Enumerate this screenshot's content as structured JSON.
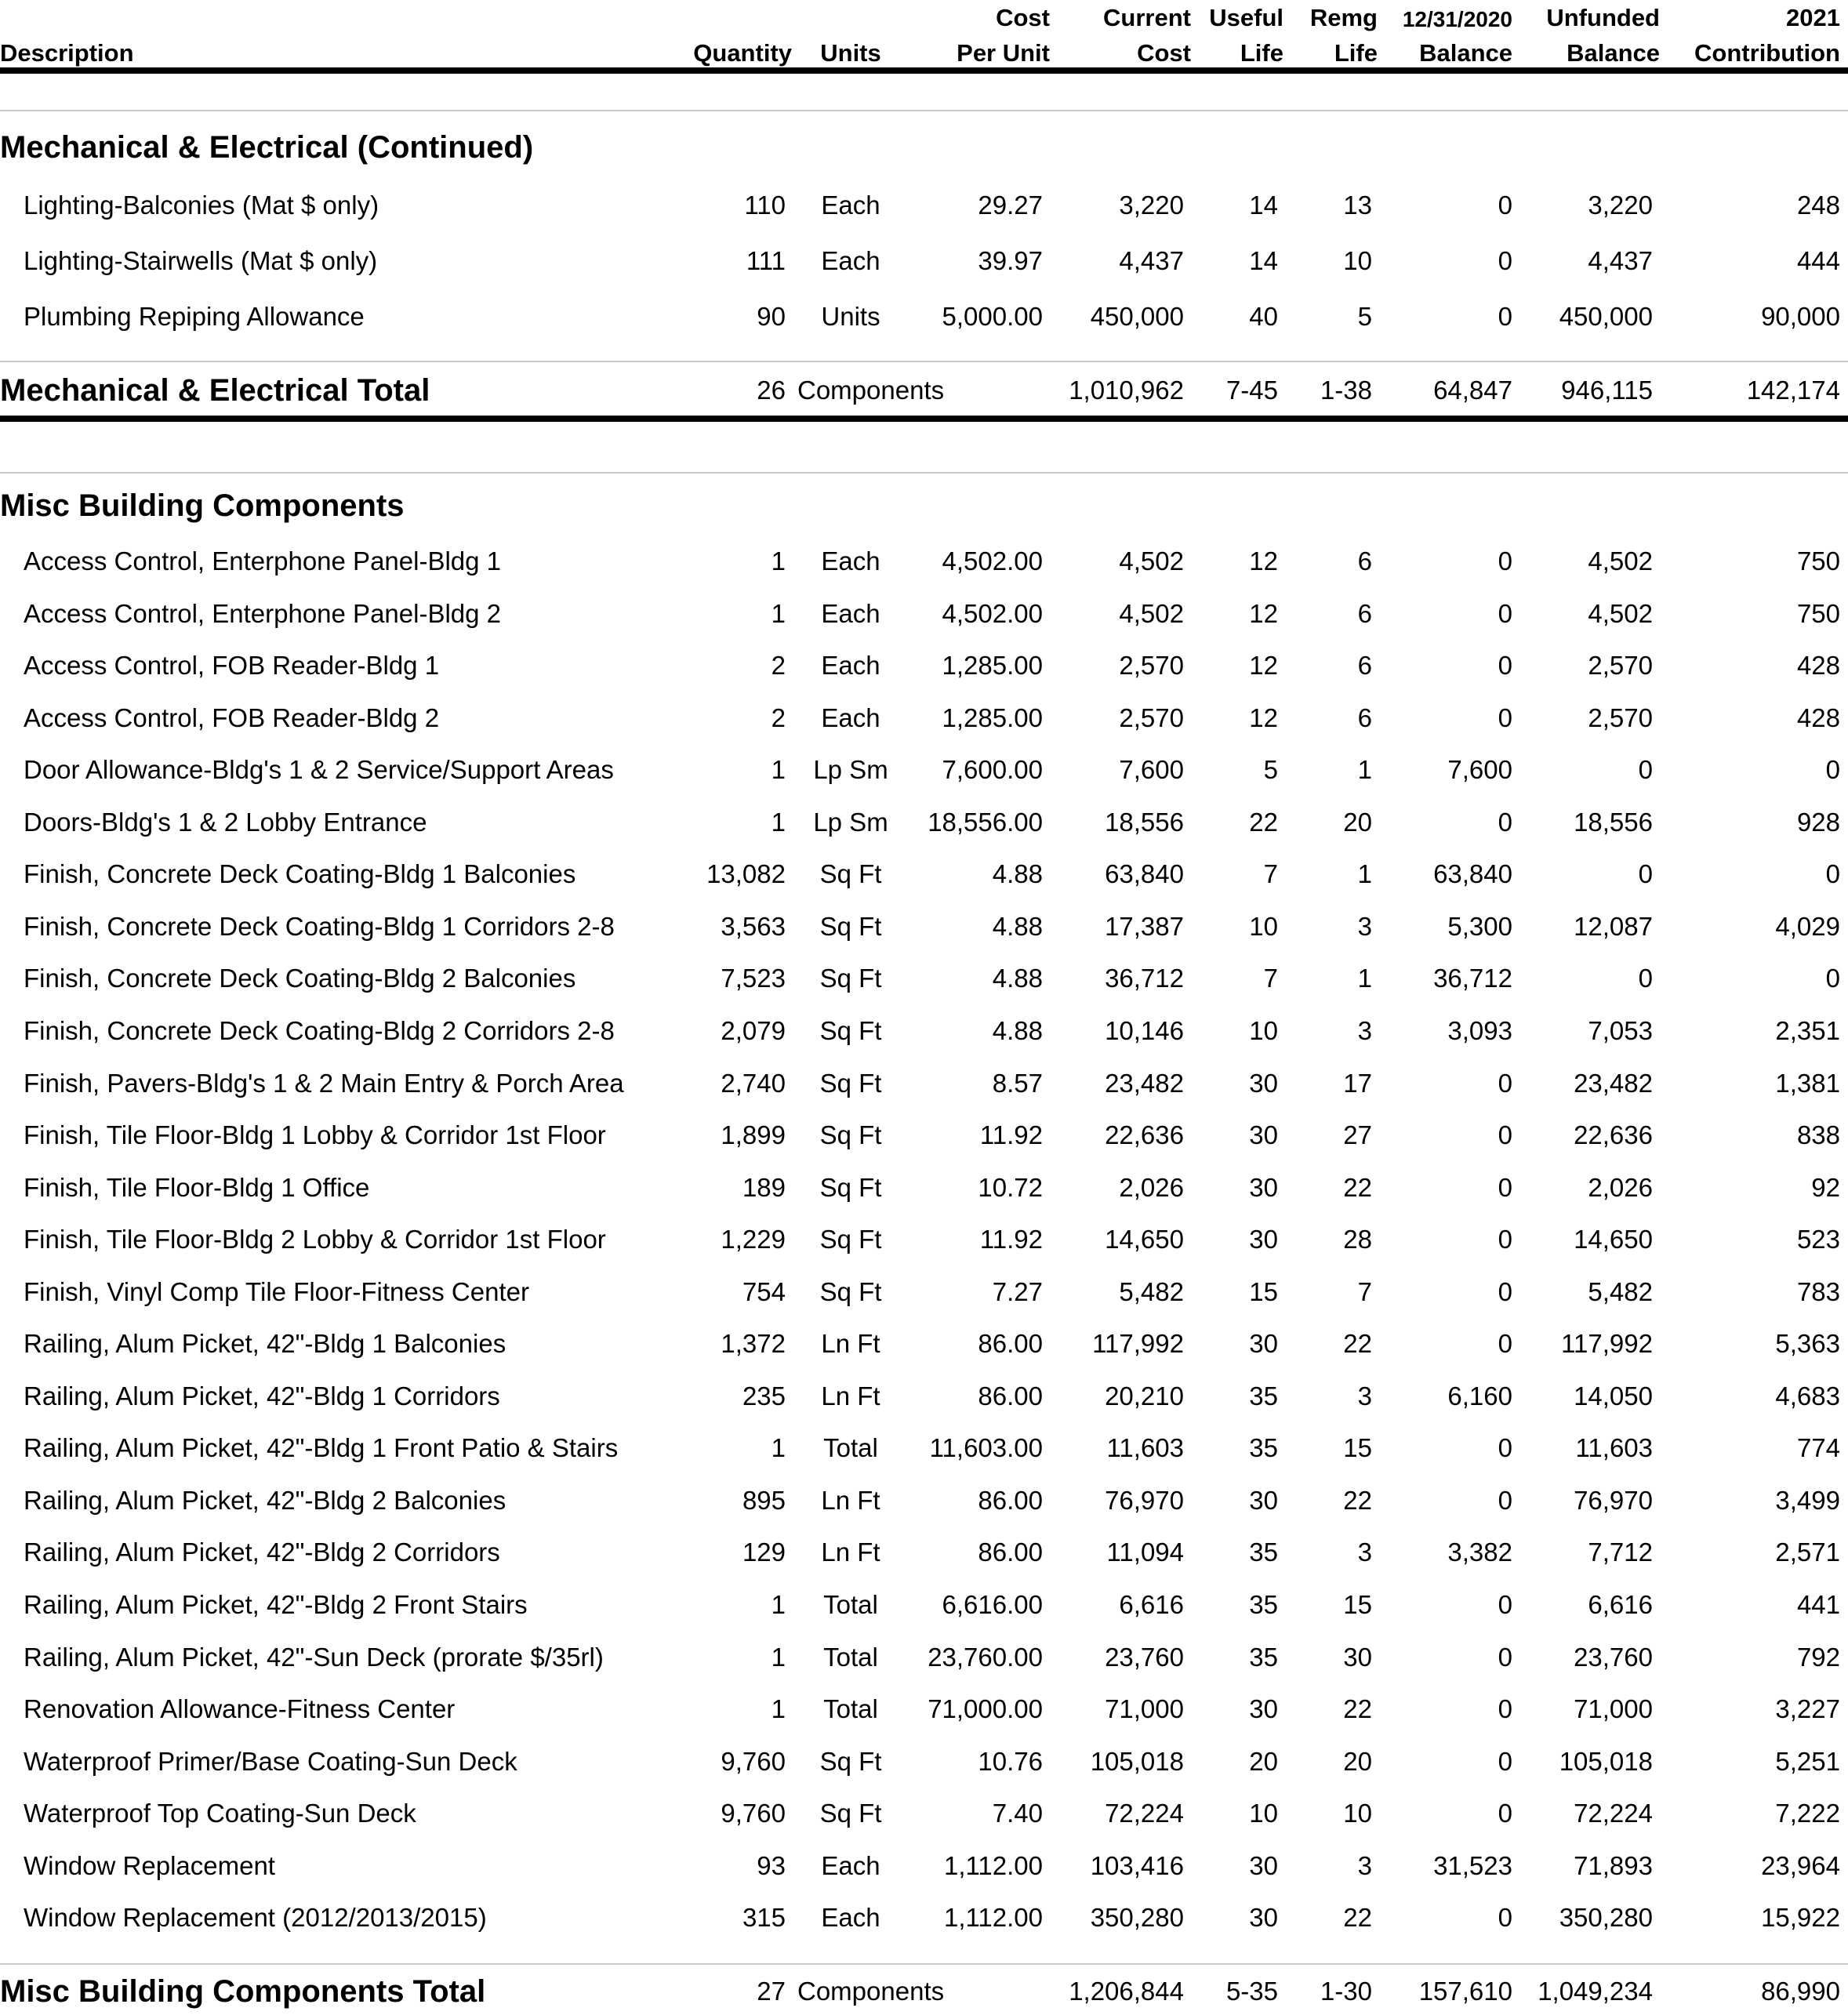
{
  "header": {
    "description": "Description",
    "quantity": "Quantity",
    "units": "Units",
    "cost_line1": "Cost",
    "cost_line2": "Per Unit",
    "current_line1": "Current",
    "current_line2": "Cost",
    "useful_line1": "Useful",
    "useful_line2": "Life",
    "remg_line1": "Remg",
    "remg_line2": "Life",
    "balance_line1": "12/31/2020",
    "balance_line2": "Balance",
    "unfunded_line1": "Unfunded",
    "unfunded_line2": "Balance",
    "contribution_line1": "2021",
    "contribution_line2": "Contribution"
  },
  "sections": [
    {
      "title": "Mechanical & Electrical (Continued)",
      "rows": [
        {
          "desc": "Lighting-Balconies (Mat $ only)",
          "qty": "110",
          "units": "Each",
          "cpu": "29.27",
          "cur": "3,220",
          "useful": "14",
          "remg": "13",
          "bal": "0",
          "unf": "3,220",
          "contrib": "248"
        },
        {
          "desc": "Lighting-Stairwells (Mat $ only)",
          "qty": "111",
          "units": "Each",
          "cpu": "39.97",
          "cur": "4,437",
          "useful": "14",
          "remg": "10",
          "bal": "0",
          "unf": "4,437",
          "contrib": "444"
        },
        {
          "desc": "Plumbing Repiping Allowance",
          "qty": "90",
          "units": "Units",
          "cpu": "5,000.00",
          "cur": "450,000",
          "useful": "40",
          "remg": "5",
          "bal": "0",
          "unf": "450,000",
          "contrib": "90,000"
        }
      ],
      "total": {
        "label": "Mechanical & Electrical Total",
        "qty": "26",
        "units": "Components",
        "cur": "1,010,962",
        "useful": "7-45",
        "remg": "1-38",
        "bal": "64,847",
        "unf": "946,115",
        "contrib": "142,174"
      }
    },
    {
      "title": "Misc Building Components",
      "rows": [
        {
          "desc": "Access Control, Enterphone Panel-Bldg 1",
          "qty": "1",
          "units": "Each",
          "cpu": "4,502.00",
          "cur": "4,502",
          "useful": "12",
          "remg": "6",
          "bal": "0",
          "unf": "4,502",
          "contrib": "750"
        },
        {
          "desc": "Access Control, Enterphone Panel-Bldg 2",
          "qty": "1",
          "units": "Each",
          "cpu": "4,502.00",
          "cur": "4,502",
          "useful": "12",
          "remg": "6",
          "bal": "0",
          "unf": "4,502",
          "contrib": "750"
        },
        {
          "desc": "Access Control, FOB Reader-Bldg 1",
          "qty": "2",
          "units": "Each",
          "cpu": "1,285.00",
          "cur": "2,570",
          "useful": "12",
          "remg": "6",
          "bal": "0",
          "unf": "2,570",
          "contrib": "428"
        },
        {
          "desc": "Access Control, FOB Reader-Bldg 2",
          "qty": "2",
          "units": "Each",
          "cpu": "1,285.00",
          "cur": "2,570",
          "useful": "12",
          "remg": "6",
          "bal": "0",
          "unf": "2,570",
          "contrib": "428"
        },
        {
          "desc": "Door Allowance-Bldg's 1 & 2 Service/Support Areas",
          "qty": "1",
          "units": "Lp Sm",
          "cpu": "7,600.00",
          "cur": "7,600",
          "useful": "5",
          "remg": "1",
          "bal": "7,600",
          "unf": "0",
          "contrib": "0"
        },
        {
          "desc": "Doors-Bldg's 1 & 2 Lobby Entrance",
          "qty": "1",
          "units": "Lp Sm",
          "cpu": "18,556.00",
          "cur": "18,556",
          "useful": "22",
          "remg": "20",
          "bal": "0",
          "unf": "18,556",
          "contrib": "928"
        },
        {
          "desc": "Finish, Concrete Deck Coating-Bldg 1 Balconies",
          "qty": "13,082",
          "units": "Sq Ft",
          "cpu": "4.88",
          "cur": "63,840",
          "useful": "7",
          "remg": "1",
          "bal": "63,840",
          "unf": "0",
          "contrib": "0"
        },
        {
          "desc": "Finish, Concrete Deck Coating-Bldg 1 Corridors 2-8",
          "qty": "3,563",
          "units": "Sq Ft",
          "cpu": "4.88",
          "cur": "17,387",
          "useful": "10",
          "remg": "3",
          "bal": "5,300",
          "unf": "12,087",
          "contrib": "4,029"
        },
        {
          "desc": "Finish, Concrete Deck Coating-Bldg 2 Balconies",
          "qty": "7,523",
          "units": "Sq Ft",
          "cpu": "4.88",
          "cur": "36,712",
          "useful": "7",
          "remg": "1",
          "bal": "36,712",
          "unf": "0",
          "contrib": "0"
        },
        {
          "desc": "Finish, Concrete Deck Coating-Bldg 2 Corridors 2-8",
          "qty": "2,079",
          "units": "Sq Ft",
          "cpu": "4.88",
          "cur": "10,146",
          "useful": "10",
          "remg": "3",
          "bal": "3,093",
          "unf": "7,053",
          "contrib": "2,351"
        },
        {
          "desc": "Finish, Pavers-Bldg's 1 & 2 Main Entry & Porch Area",
          "qty": "2,740",
          "units": "Sq Ft",
          "cpu": "8.57",
          "cur": "23,482",
          "useful": "30",
          "remg": "17",
          "bal": "0",
          "unf": "23,482",
          "contrib": "1,381"
        },
        {
          "desc": "Finish, Tile Floor-Bldg 1 Lobby & Corridor 1st Floor",
          "qty": "1,899",
          "units": "Sq Ft",
          "cpu": "11.92",
          "cur": "22,636",
          "useful": "30",
          "remg": "27",
          "bal": "0",
          "unf": "22,636",
          "contrib": "838"
        },
        {
          "desc": "Finish, Tile Floor-Bldg 1 Office",
          "qty": "189",
          "units": "Sq Ft",
          "cpu": "10.72",
          "cur": "2,026",
          "useful": "30",
          "remg": "22",
          "bal": "0",
          "unf": "2,026",
          "contrib": "92"
        },
        {
          "desc": "Finish, Tile Floor-Bldg 2 Lobby & Corridor 1st Floor",
          "qty": "1,229",
          "units": "Sq Ft",
          "cpu": "11.92",
          "cur": "14,650",
          "useful": "30",
          "remg": "28",
          "bal": "0",
          "unf": "14,650",
          "contrib": "523"
        },
        {
          "desc": "Finish, Vinyl Comp Tile Floor-Fitness Center",
          "qty": "754",
          "units": "Sq Ft",
          "cpu": "7.27",
          "cur": "5,482",
          "useful": "15",
          "remg": "7",
          "bal": "0",
          "unf": "5,482",
          "contrib": "783"
        },
        {
          "desc": "Railing, Alum Picket, 42\"-Bldg 1 Balconies",
          "qty": "1,372",
          "units": "Ln Ft",
          "cpu": "86.00",
          "cur": "117,992",
          "useful": "30",
          "remg": "22",
          "bal": "0",
          "unf": "117,992",
          "contrib": "5,363"
        },
        {
          "desc": "Railing, Alum Picket, 42\"-Bldg 1 Corridors",
          "qty": "235",
          "units": "Ln Ft",
          "cpu": "86.00",
          "cur": "20,210",
          "useful": "35",
          "remg": "3",
          "bal": "6,160",
          "unf": "14,050",
          "contrib": "4,683"
        },
        {
          "desc": "Railing, Alum Picket, 42\"-Bldg 1 Front Patio & Stairs",
          "qty": "1",
          "units": "Total",
          "cpu": "11,603.00",
          "cur": "11,603",
          "useful": "35",
          "remg": "15",
          "bal": "0",
          "unf": "11,603",
          "contrib": "774"
        },
        {
          "desc": "Railing, Alum Picket, 42\"-Bldg 2 Balconies",
          "qty": "895",
          "units": "Ln Ft",
          "cpu": "86.00",
          "cur": "76,970",
          "useful": "30",
          "remg": "22",
          "bal": "0",
          "unf": "76,970",
          "contrib": "3,499"
        },
        {
          "desc": "Railing, Alum Picket, 42\"-Bldg 2 Corridors",
          "qty": "129",
          "units": "Ln Ft",
          "cpu": "86.00",
          "cur": "11,094",
          "useful": "35",
          "remg": "3",
          "bal": "3,382",
          "unf": "7,712",
          "contrib": "2,571"
        },
        {
          "desc": "Railing, Alum Picket, 42\"-Bldg 2 Front Stairs",
          "qty": "1",
          "units": "Total",
          "cpu": "6,616.00",
          "cur": "6,616",
          "useful": "35",
          "remg": "15",
          "bal": "0",
          "unf": "6,616",
          "contrib": "441"
        },
        {
          "desc": "Railing, Alum Picket, 42\"-Sun Deck (prorate $/35rl)",
          "qty": "1",
          "units": "Total",
          "cpu": "23,760.00",
          "cur": "23,760",
          "useful": "35",
          "remg": "30",
          "bal": "0",
          "unf": "23,760",
          "contrib": "792"
        },
        {
          "desc": "Renovation Allowance-Fitness Center",
          "qty": "1",
          "units": "Total",
          "cpu": "71,000.00",
          "cur": "71,000",
          "useful": "30",
          "remg": "22",
          "bal": "0",
          "unf": "71,000",
          "contrib": "3,227"
        },
        {
          "desc": "Waterproof Primer/Base Coating-Sun Deck",
          "qty": "9,760",
          "units": "Sq Ft",
          "cpu": "10.76",
          "cur": "105,018",
          "useful": "20",
          "remg": "20",
          "bal": "0",
          "unf": "105,018",
          "contrib": "5,251"
        },
        {
          "desc": "Waterproof Top Coating-Sun Deck",
          "qty": "9,760",
          "units": "Sq Ft",
          "cpu": "7.40",
          "cur": "72,224",
          "useful": "10",
          "remg": "10",
          "bal": "0",
          "unf": "72,224",
          "contrib": "7,222"
        },
        {
          "desc": "Window Replacement",
          "qty": "93",
          "units": "Each",
          "cpu": "1,112.00",
          "cur": "103,416",
          "useful": "30",
          "remg": "3",
          "bal": "31,523",
          "unf": "71,893",
          "contrib": "23,964"
        },
        {
          "desc": "Window Replacement (2012/2013/2015)",
          "qty": "315",
          "units": "Each",
          "cpu": "1,112.00",
          "cur": "350,280",
          "useful": "30",
          "remg": "22",
          "bal": "0",
          "unf": "350,280",
          "contrib": "15,922"
        }
      ],
      "total": {
        "label": "Misc Building Components Total",
        "qty": "27",
        "units": "Components",
        "cur": "1,206,844",
        "useful": "5-35",
        "remg": "1-30",
        "bal": "157,610",
        "unf": "1,049,234",
        "contrib": "86,990"
      }
    }
  ]
}
